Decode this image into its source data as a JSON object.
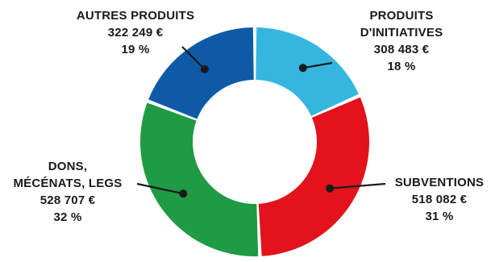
{
  "chart_data": {
    "type": "pie",
    "variant": "donut",
    "title": "",
    "slices": [
      {
        "label_lines": [
          "PRODUITS",
          "D'INITIATIVES"
        ],
        "amount": "308 483 €",
        "percent_label": "18 %",
        "value": 308483,
        "color": "#35b6df"
      },
      {
        "label_lines": [
          "SUBVENTIONS"
        ],
        "amount": "518 082 €",
        "percent_label": "31 %",
        "value": 518082,
        "color": "#e2131d"
      },
      {
        "label_lines": [
          "DONS,",
          "MÉCÉNATS, LEGS"
        ],
        "amount": "528 707 €",
        "percent_label": "32 %",
        "value": 528707,
        "color": "#1f9a45"
      },
      {
        "label_lines": [
          "AUTRES PRODUITS"
        ],
        "amount": "322 249 €",
        "percent_label": "19 %",
        "value": 322249,
        "color": "#0e5aa7"
      }
    ],
    "leader_color": "#1a1a1a",
    "legend": "none"
  }
}
